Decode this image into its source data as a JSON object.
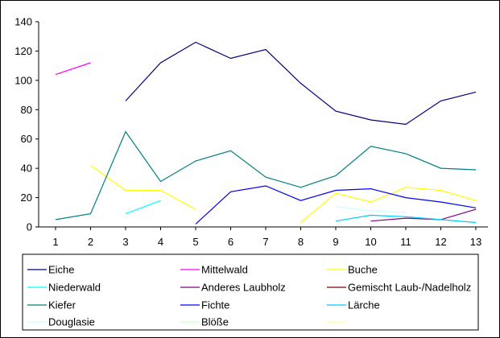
{
  "chart_data": {
    "type": "line",
    "x": [
      1,
      2,
      3,
      4,
      5,
      6,
      7,
      8,
      9,
      10,
      11,
      12,
      13
    ],
    "ylim": [
      0,
      140
    ],
    "yticks": [
      0,
      20,
      40,
      60,
      80,
      100,
      120,
      140
    ],
    "grid": "none",
    "legend_position": "bottom",
    "series": [
      {
        "name": "Eiche",
        "color": "#000080",
        "values": [
          null,
          null,
          86,
          112,
          126,
          115,
          121,
          98,
          79,
          73,
          70,
          86,
          92
        ]
      },
      {
        "name": "Mittelwald",
        "color": "#FF00FF",
        "values": [
          104,
          112,
          null,
          null,
          null,
          null,
          null,
          null,
          null,
          null,
          null,
          null,
          null
        ]
      },
      {
        "name": "Buche",
        "color": "#FFFF00",
        "values": [
          null,
          42,
          25,
          25,
          12,
          null,
          null,
          3,
          23,
          17,
          27,
          25,
          18
        ]
      },
      {
        "name": "Niederwald",
        "color": "#00FFFF",
        "values": [
          null,
          null,
          9,
          18,
          null,
          null,
          null,
          null,
          null,
          null,
          null,
          null,
          null
        ]
      },
      {
        "name": "Anderes Laubholz",
        "color": "#800080",
        "values": [
          null,
          null,
          null,
          null,
          null,
          null,
          null,
          null,
          null,
          4,
          6,
          5,
          12
        ]
      },
      {
        "name": "Gemischt Laub-/Nadelholz",
        "color": "#800000",
        "values": [
          null,
          null,
          null,
          null,
          null,
          null,
          null,
          null,
          null,
          null,
          null,
          null,
          null
        ]
      },
      {
        "name": "Kiefer",
        "color": "#008080",
        "values": [
          5,
          9,
          65,
          31,
          45,
          52,
          34,
          27,
          35,
          55,
          50,
          40,
          39
        ]
      },
      {
        "name": "Fichte",
        "color": "#0000FF",
        "values": [
          null,
          null,
          null,
          null,
          2,
          24,
          28,
          18,
          25,
          26,
          20,
          17,
          13
        ]
      },
      {
        "name": "Lärche",
        "color": "#00CCFF",
        "values": [
          null,
          null,
          null,
          null,
          null,
          null,
          null,
          null,
          4,
          8,
          7,
          5,
          3
        ]
      },
      {
        "name": "Douglasie",
        "color": "#CCFFFF",
        "values": [
          null,
          null,
          null,
          null,
          null,
          null,
          null,
          null,
          14,
          11,
          10,
          null,
          null
        ]
      },
      {
        "name": "Blöße",
        "color": "#CCFFCC",
        "values": [
          null,
          null,
          null,
          null,
          null,
          null,
          null,
          null,
          null,
          null,
          null,
          null,
          null
        ]
      },
      {
        "name": "",
        "color": "#FFFF99",
        "values": [
          null,
          null,
          null,
          null,
          null,
          null,
          null,
          null,
          null,
          null,
          null,
          null,
          null
        ]
      }
    ]
  }
}
